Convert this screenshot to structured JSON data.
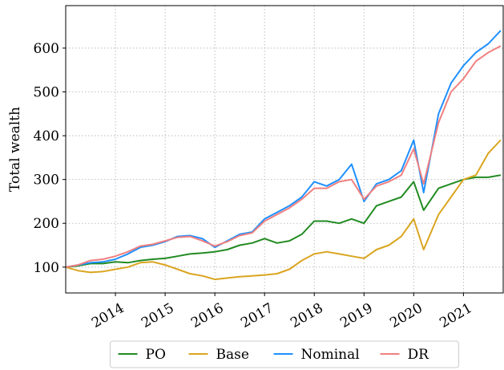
{
  "chart_data": {
    "type": "line",
    "y_label": "Total wealth",
    "x": [
      2013.0,
      2013.25,
      2013.5,
      2013.75,
      2014.0,
      2014.25,
      2014.5,
      2014.75,
      2015.0,
      2015.25,
      2015.5,
      2015.75,
      2016.0,
      2016.25,
      2016.5,
      2016.75,
      2017.0,
      2017.25,
      2017.5,
      2017.75,
      2018.0,
      2018.25,
      2018.5,
      2018.75,
      2019.0,
      2019.25,
      2019.5,
      2019.75,
      2020.0,
      2020.2,
      2020.5,
      2020.75,
      2021.0,
      2021.25,
      2021.5,
      2021.75
    ],
    "series": [
      {
        "name": "PO",
        "color": "#228b22",
        "values": [
          100,
          103,
          108,
          108,
          112,
          110,
          115,
          118,
          120,
          125,
          130,
          132,
          135,
          140,
          150,
          155,
          165,
          155,
          160,
          175,
          205,
          205,
          200,
          210,
          200,
          240,
          250,
          260,
          295,
          230,
          280,
          290,
          300,
          305,
          305,
          310
        ]
      },
      {
        "name": "Base",
        "color": "#daa520",
        "values": [
          100,
          92,
          88,
          90,
          95,
          100,
          110,
          112,
          105,
          95,
          85,
          80,
          72,
          75,
          78,
          80,
          82,
          85,
          95,
          115,
          130,
          135,
          130,
          125,
          120,
          140,
          150,
          170,
          210,
          140,
          220,
          260,
          300,
          310,
          360,
          390
        ]
      },
      {
        "name": "Nominal",
        "color": "#1e90ff",
        "values": [
          100,
          105,
          110,
          112,
          118,
          130,
          145,
          150,
          158,
          170,
          172,
          165,
          145,
          160,
          175,
          180,
          210,
          225,
          240,
          260,
          295,
          285,
          300,
          335,
          250,
          290,
          300,
          320,
          390,
          270,
          450,
          520,
          560,
          590,
          610,
          640
        ]
      },
      {
        "name": "DR",
        "color": "#f08080",
        "values": [
          100,
          105,
          115,
          118,
          125,
          135,
          148,
          152,
          160,
          168,
          170,
          160,
          148,
          158,
          172,
          178,
          205,
          220,
          235,
          255,
          280,
          280,
          295,
          300,
          255,
          285,
          295,
          310,
          370,
          290,
          430,
          500,
          530,
          570,
          590,
          605
        ]
      }
    ],
    "xlim": [
      2013.0,
      2021.8
    ],
    "xticks": [
      2014,
      2015,
      2016,
      2017,
      2018,
      2019,
      2020,
      2021
    ],
    "ylim": [
      41,
      697
    ],
    "yticks": [
      100,
      200,
      300,
      400,
      500,
      600
    ],
    "grid": true,
    "legend": "bottom"
  }
}
